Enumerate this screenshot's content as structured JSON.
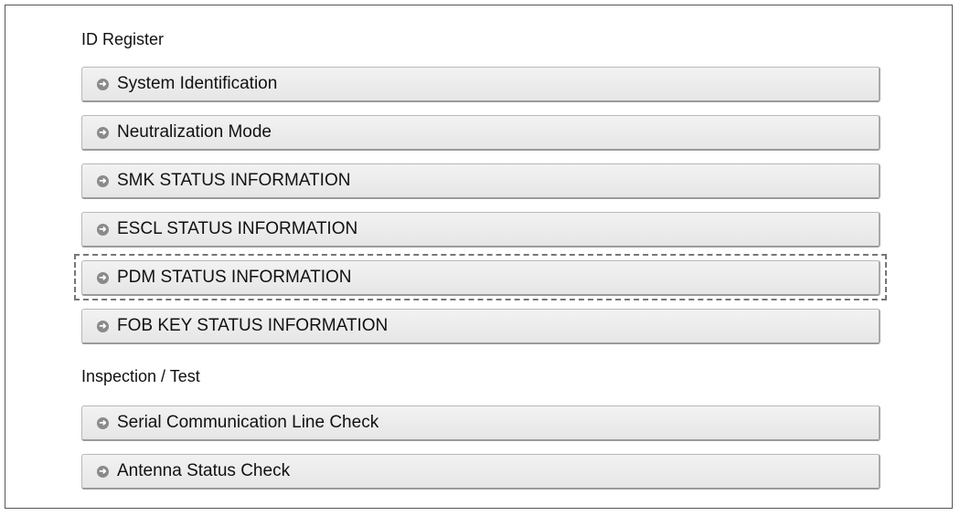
{
  "sections": [
    {
      "title": "ID Register",
      "items": [
        "System Identification",
        "Neutralization Mode",
        "SMK STATUS INFORMATION",
        "ESCL STATUS INFORMATION",
        "PDM STATUS INFORMATION",
        "FOB KEY STATUS INFORMATION"
      ]
    },
    {
      "title": "Inspection / Test",
      "items": [
        "Serial Communication Line Check",
        "Antenna Status Check"
      ]
    }
  ],
  "highlighted_item": "PDM STATUS INFORMATION",
  "icon": "arrow-circle-right-icon"
}
